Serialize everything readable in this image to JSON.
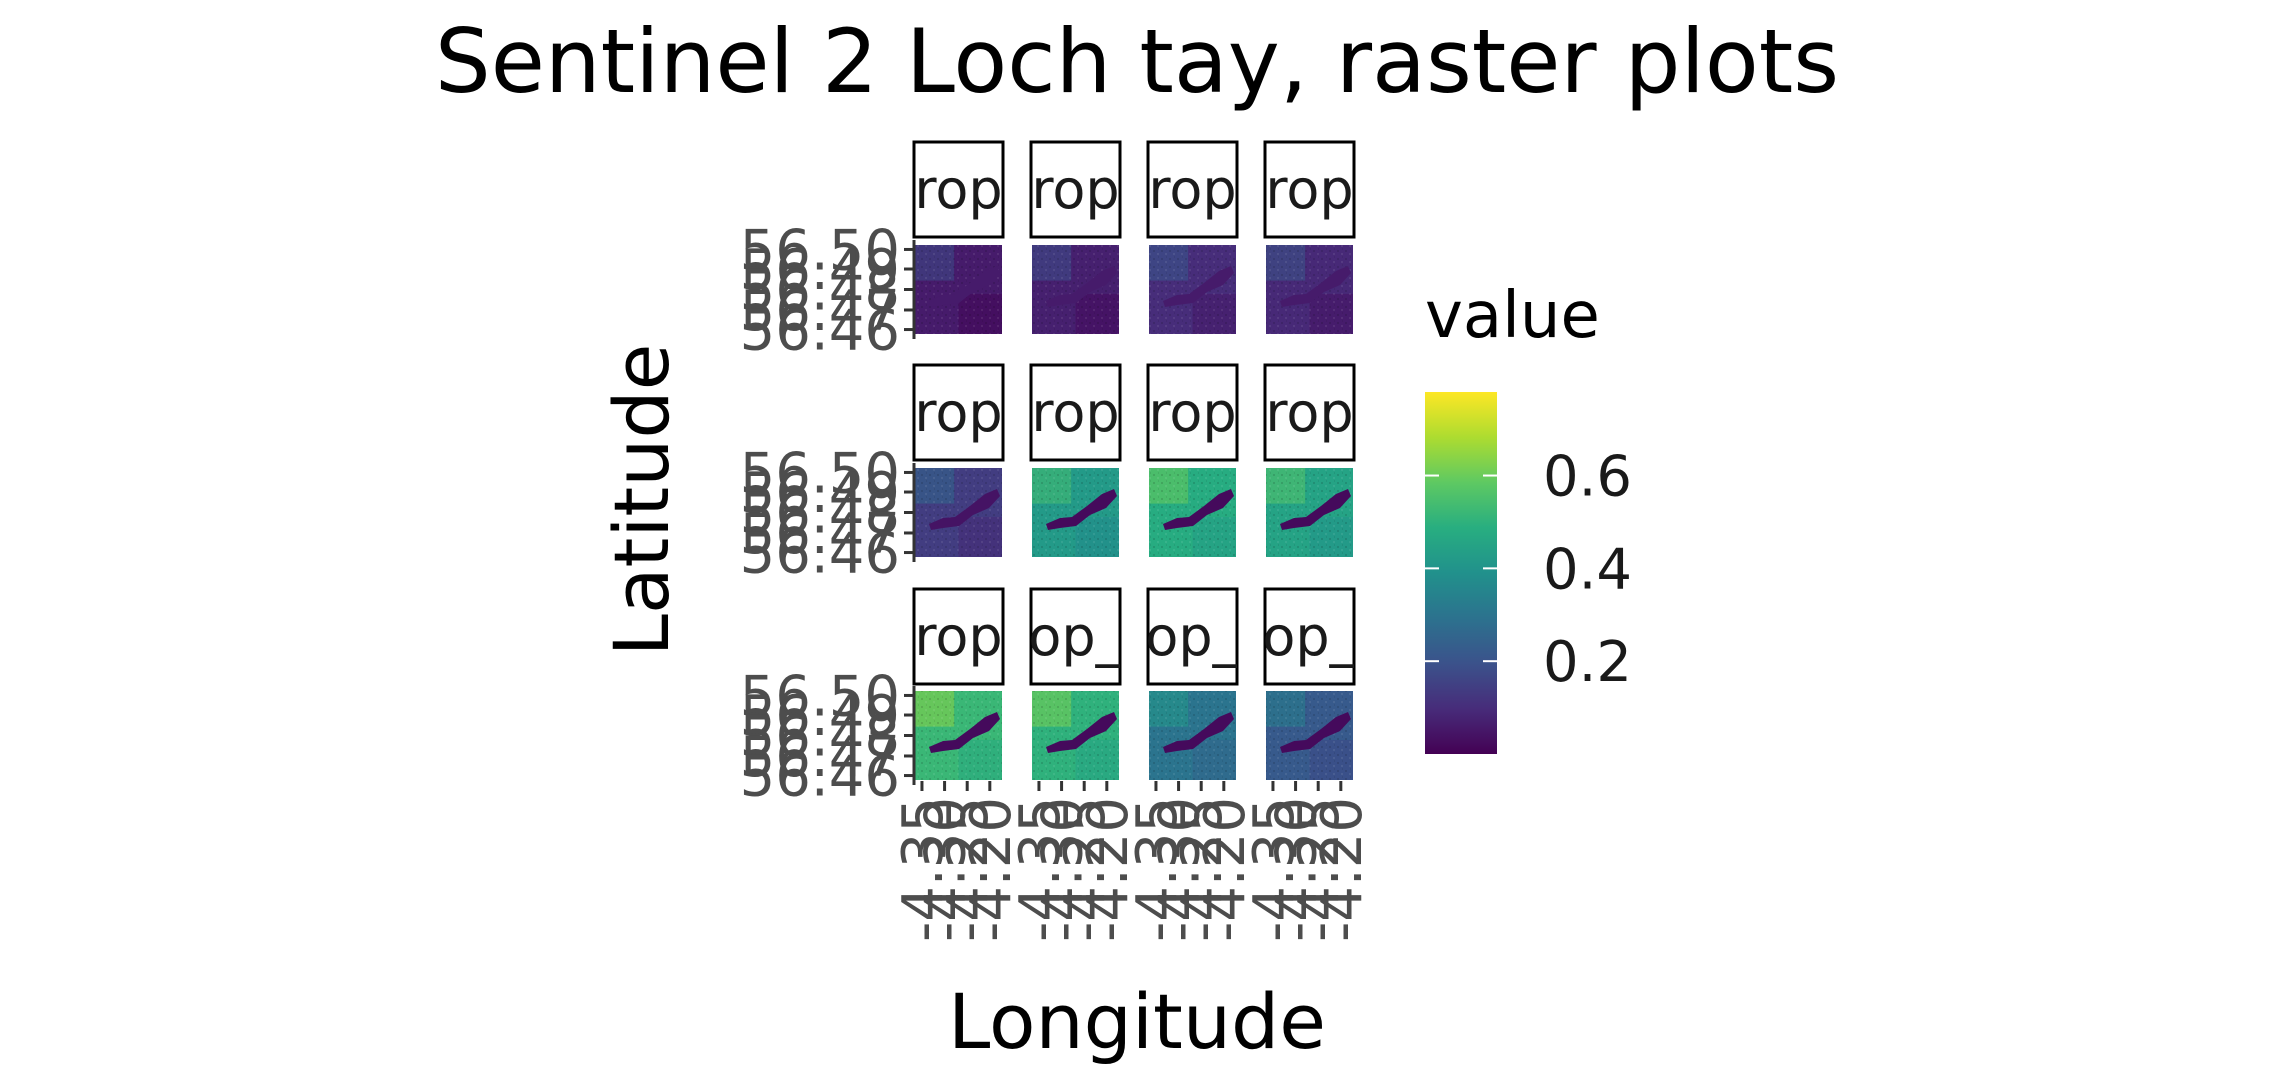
{
  "chart_data": {
    "type": "heatmap",
    "title": "Sentinel 2 Loch tay, raster plots",
    "xlabel": "Longitude",
    "ylabel": "Latitude",
    "layout": {
      "rows": 3,
      "cols": 4
    },
    "y_tick_labels": [
      "56.50",
      "56.49",
      "56.48",
      "56.47",
      "56.46"
    ],
    "x_tick_labels": [
      "-4.35",
      "-4.30",
      "-4.25",
      "-4.20"
    ],
    "panels": [
      {
        "strip": "rop",
        "mean_value": 0.06,
        "water_contrast": 0.0
      },
      {
        "strip": "rop",
        "mean_value": 0.07,
        "water_contrast": 0.01
      },
      {
        "strip": "rop",
        "mean_value": 0.1,
        "water_contrast": 0.04
      },
      {
        "strip": "rop",
        "mean_value": 0.09,
        "water_contrast": 0.03
      },
      {
        "strip": "rop",
        "mean_value": 0.14,
        "water_contrast": 0.1
      },
      {
        "strip": "rop",
        "mean_value": 0.42,
        "water_contrast": 0.4
      },
      {
        "strip": "rop",
        "mean_value": 0.48,
        "water_contrast": 0.46
      },
      {
        "strip": "rop",
        "mean_value": 0.45,
        "water_contrast": 0.43
      },
      {
        "strip": "rop",
        "mean_value": 0.52,
        "water_contrast": 0.5
      },
      {
        "strip": "op_",
        "mean_value": 0.5,
        "water_contrast": 0.48
      },
      {
        "strip": "op_",
        "mean_value": 0.3,
        "water_contrast": 0.28
      },
      {
        "strip": "op_",
        "mean_value": 0.22,
        "water_contrast": 0.2
      }
    ],
    "legend": {
      "title": "value",
      "breaks": [
        0.6,
        0.4,
        0.2
      ],
      "break_labels": [
        "0.6",
        "0.4",
        "0.2"
      ],
      "range": [
        0.0,
        0.78
      ],
      "colormap": "viridis",
      "position": "right"
    },
    "grid": false
  }
}
